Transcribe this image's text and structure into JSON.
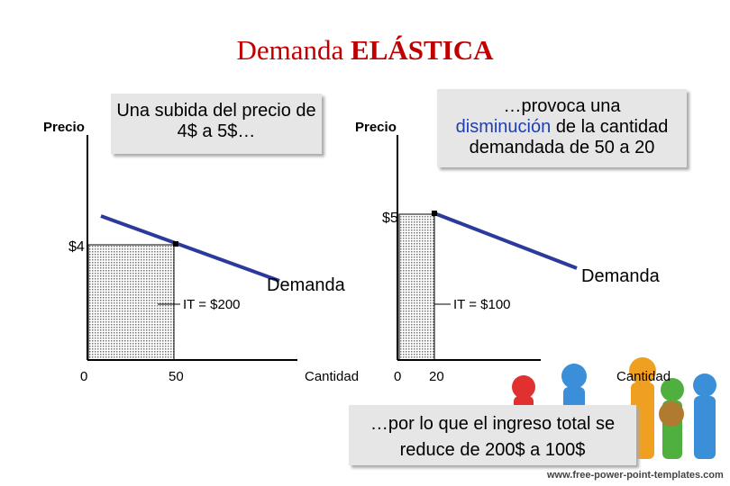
{
  "title": {
    "normal": "Demanda",
    "bold": "ELÁSTICA"
  },
  "left_graph": {
    "y_label": "Precio",
    "callout": "Una subida del precio de 4$ a 5$…",
    "price": "$4",
    "revenue": "IT = $200",
    "curve": "Demanda",
    "origin": "0",
    "quantity": "50",
    "x_label": "Cantidad"
  },
  "right_graph": {
    "y_label": "Precio",
    "callout": {
      "before": "…provoca una",
      "highlight": "disminución",
      "after": "de la cantidad demandada de 50 a 20"
    },
    "price": "$5",
    "revenue": "IT = $100",
    "curve": "Demanda",
    "origin": "0",
    "quantity": "20",
    "x_label": "Cantidad"
  },
  "conclusion": "…por lo que el ingreso total se reduce de 200$ a 100$",
  "watermark": "www.free-power-point-templates.com"
}
